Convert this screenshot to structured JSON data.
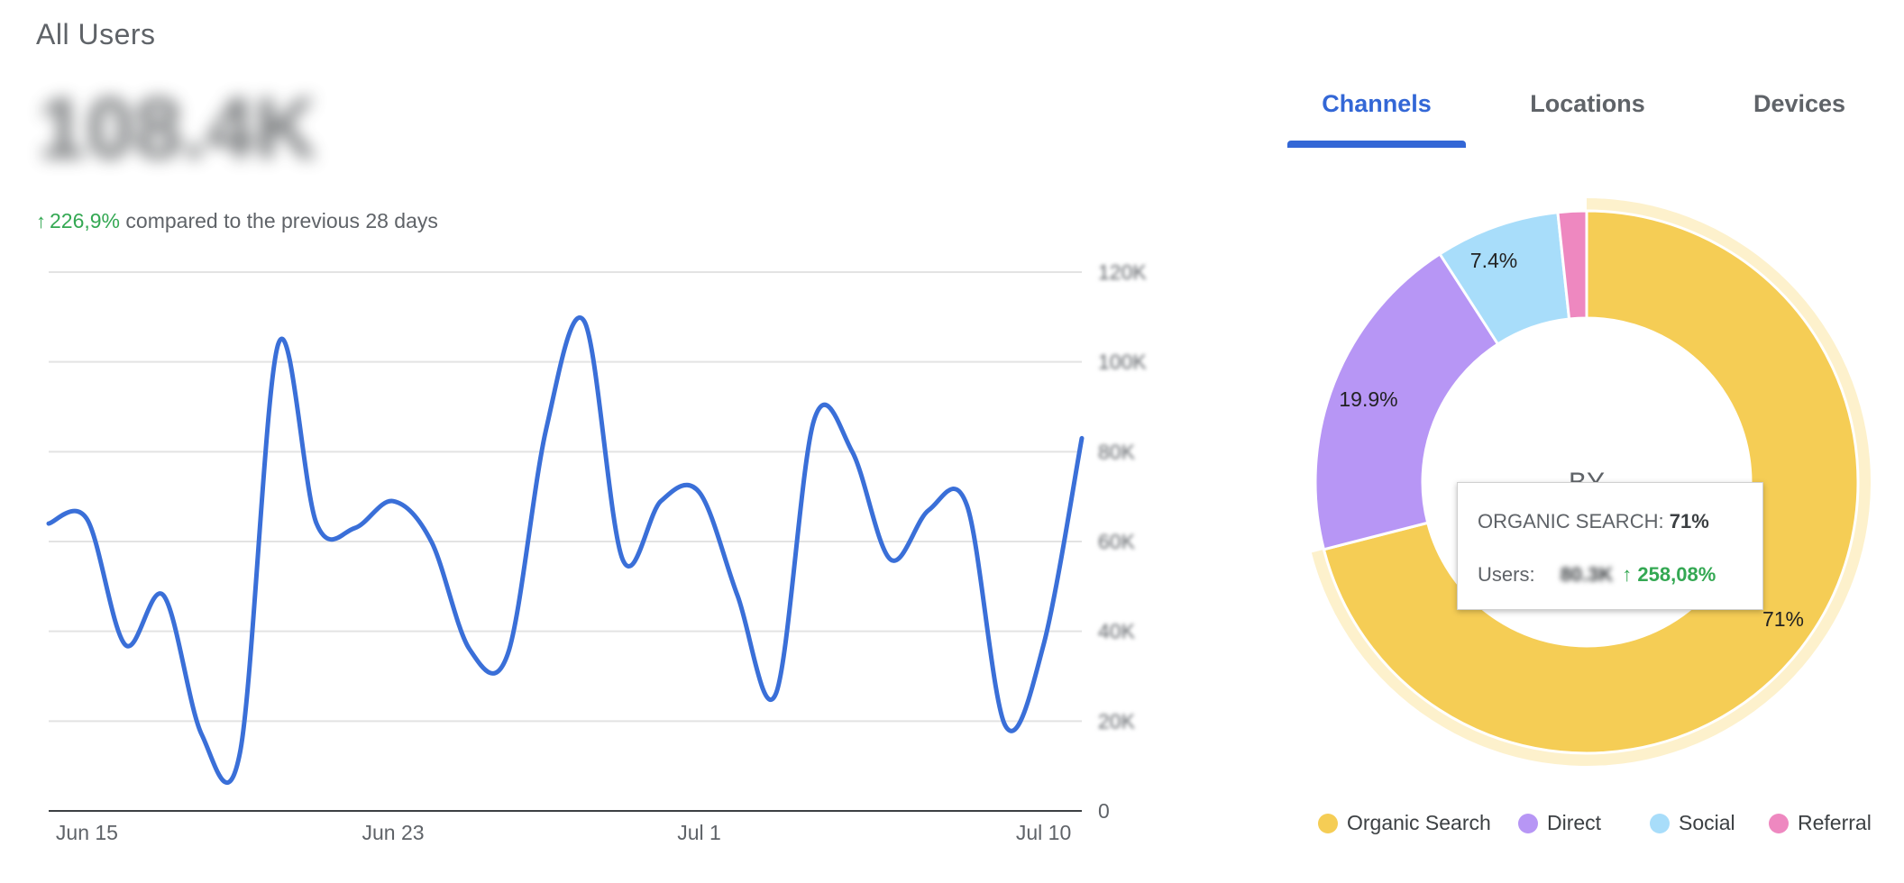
{
  "header": {
    "title": "All Users",
    "total": "108.4K",
    "change_pct": "226,9%",
    "compare_text": "compared to the previous 28 days",
    "change_color": "#34a853"
  },
  "tabs": [
    {
      "label": "Channels",
      "active": true
    },
    {
      "label": "Locations",
      "active": false
    },
    {
      "label": "Devices",
      "active": false
    }
  ],
  "chart_data": [
    {
      "type": "line",
      "series": [
        {
          "values": [
            64000,
            65000,
            37000,
            48000,
            17000,
            13000,
            104000,
            64000,
            63000,
            69000,
            60000,
            36000,
            35000,
            85000,
            109000,
            56000,
            69000,
            71000,
            48000,
            26000,
            87000,
            80000,
            56000,
            67000,
            68000,
            19000,
            37000,
            83000
          ],
          "color": "#3a6fd8"
        }
      ],
      "x_tick_labels": [
        "Jun 15",
        "Jun 23",
        "Jul 1",
        "Jul 10"
      ],
      "x_tick_index": [
        1,
        9,
        17,
        26
      ],
      "y_tick_labels": [
        "0",
        "20K",
        "40K",
        "60K",
        "80K",
        "100K",
        "120K"
      ],
      "ylim": [
        0,
        120000
      ],
      "grid": true
    },
    {
      "type": "pie",
      "center_label": "BY",
      "slices": [
        {
          "name": "Organic Search",
          "value": 71,
          "label": "71%",
          "color": "#f5cd55"
        },
        {
          "name": "Direct",
          "value": 19.9,
          "label": "19.9%",
          "color": "#b796f5"
        },
        {
          "name": "Social",
          "value": 7.4,
          "label": "7.4%",
          "color": "#a8ddfa"
        },
        {
          "name": "Referral",
          "value": 1.7,
          "label": "",
          "color": "#ee88c0"
        }
      ],
      "highlight_color": "#fdf1cc",
      "tooltip": {
        "channel": "ORGANIC SEARCH:",
        "pct": "71%",
        "users_label": "Users:",
        "users_value": "80.3K",
        "change": "258,08%"
      },
      "legend": [
        "Organic Search",
        "Direct",
        "Social",
        "Referral"
      ],
      "legend_position": "bottom"
    }
  ],
  "icons": {
    "change_arrow": "arrow-up-icon"
  }
}
